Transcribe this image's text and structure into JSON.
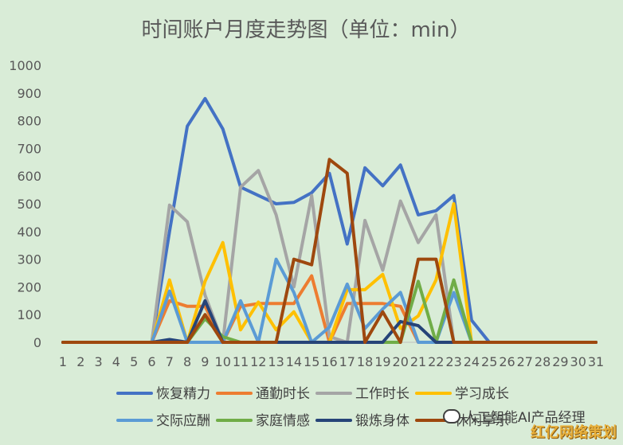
{
  "chart_data": {
    "type": "line",
    "title": "时间账户月度走势图（单位：min）",
    "x": [
      1,
      2,
      3,
      4,
      5,
      6,
      7,
      8,
      9,
      10,
      11,
      12,
      13,
      14,
      15,
      16,
      17,
      18,
      19,
      20,
      21,
      22,
      23,
      24,
      25,
      26,
      27,
      28,
      29,
      30,
      31
    ],
    "ylim": [
      0,
      1000
    ],
    "yticks": [
      0,
      100,
      200,
      300,
      400,
      500,
      600,
      700,
      800,
      900,
      1000
    ],
    "grid": false,
    "legend_position": "bottom",
    "series": [
      {
        "name": "恢复精力",
        "color": "#4472c4",
        "values": [
          0,
          0,
          0,
          0,
          0,
          0,
          400,
          780,
          880,
          770,
          560,
          530,
          500,
          505,
          540,
          610,
          355,
          630,
          565,
          640,
          460,
          475,
          530,
          80,
          0,
          0,
          0,
          0,
          0,
          0,
          0
        ]
      },
      {
        "name": "通勤时长",
        "color": "#ed7d31",
        "values": [
          0,
          0,
          0,
          0,
          0,
          0,
          150,
          130,
          130,
          0,
          130,
          140,
          140,
          140,
          240,
          0,
          140,
          140,
          140,
          130,
          0,
          0,
          0,
          0,
          0,
          0,
          0,
          0,
          0,
          0,
          0
        ]
      },
      {
        "name": "工作时长",
        "color": "#a5a5a5",
        "values": [
          0,
          0,
          0,
          0,
          0,
          0,
          495,
          435,
          170,
          0,
          560,
          620,
          460,
          200,
          530,
          20,
          0,
          440,
          260,
          510,
          360,
          460,
          0,
          0,
          0,
          0,
          0,
          0,
          0,
          0,
          0
        ]
      },
      {
        "name": "学习成长",
        "color": "#ffc000",
        "values": [
          0,
          0,
          0,
          0,
          0,
          0,
          225,
          0,
          220,
          360,
          45,
          145,
          45,
          110,
          0,
          0,
          190,
          190,
          245,
          50,
          95,
          225,
          500,
          0,
          0,
          0,
          0,
          0,
          0,
          0,
          0
        ]
      },
      {
        "name": "交际应酬",
        "color": "#5b9bd5",
        "values": [
          0,
          0,
          0,
          0,
          0,
          0,
          185,
          0,
          0,
          0,
          150,
          0,
          300,
          180,
          0,
          55,
          210,
          50,
          120,
          180,
          0,
          0,
          180,
          0,
          0,
          0,
          0,
          0,
          0,
          0,
          0
        ]
      },
      {
        "name": "家庭情感",
        "color": "#70ad47",
        "values": [
          0,
          0,
          0,
          0,
          0,
          0,
          0,
          0,
          85,
          20,
          0,
          0,
          0,
          0,
          0,
          0,
          0,
          0,
          0,
          0,
          220,
          0,
          225,
          0,
          0,
          0,
          0,
          0,
          0,
          0,
          0
        ]
      },
      {
        "name": "锻炼身体",
        "color": "#264478",
        "values": [
          0,
          0,
          0,
          0,
          0,
          0,
          10,
          0,
          150,
          0,
          0,
          0,
          0,
          0,
          0,
          0,
          0,
          0,
          0,
          75,
          60,
          0,
          0,
          0,
          0,
          0,
          0,
          0,
          0,
          0,
          0
        ]
      },
      {
        "name": "休闲享乐",
        "color": "#9e480e",
        "values": [
          0,
          0,
          0,
          0,
          0,
          0,
          0,
          0,
          100,
          0,
          0,
          0,
          0,
          300,
          280,
          660,
          610,
          0,
          110,
          0,
          300,
          300,
          0,
          0,
          0,
          0,
          0,
          0,
          0,
          0,
          0
        ]
      }
    ]
  },
  "watermark": {
    "text": "人工智能AI产品经理",
    "corner_logo": "红亿网络策划"
  }
}
